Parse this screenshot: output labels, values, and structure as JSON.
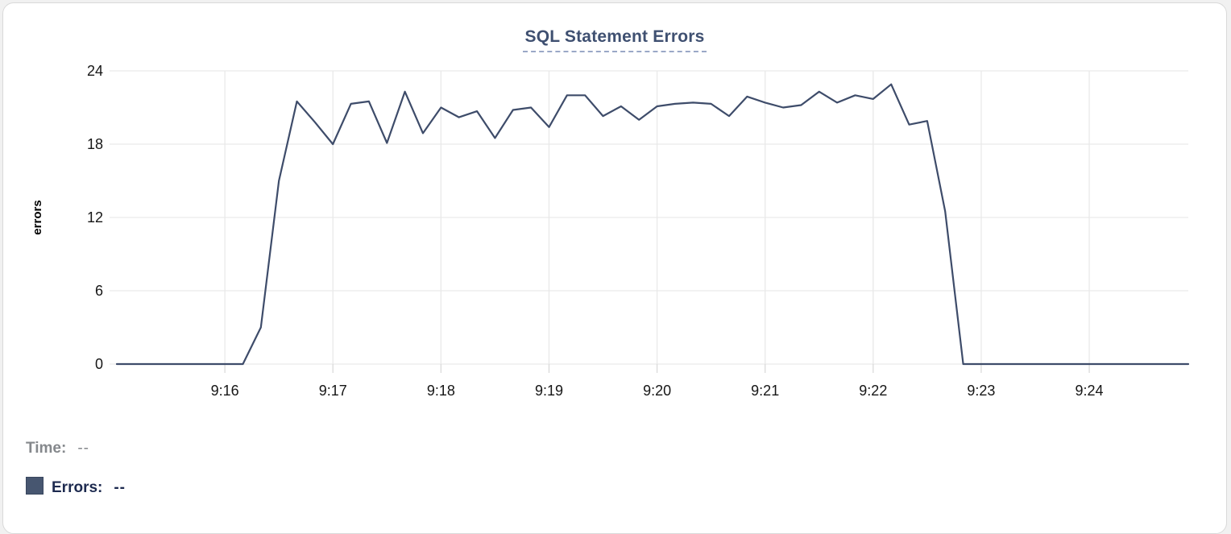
{
  "title": {
    "text": "SQL Statement Errors"
  },
  "legend": {
    "time_label": "Time:",
    "time_value": "--",
    "errors_label": "Errors:",
    "errors_value": "--"
  },
  "colors": {
    "line": "#3e4c6a",
    "title": "#3f5071",
    "title_underline": "#9aa8c7",
    "grid": "#e9e9e9",
    "tick_stub": "#dadada",
    "tick_text": "#161616",
    "axis_title_text": "#000000",
    "legend_swatch": "#475670",
    "legend_errors_text": "#1d2a4f",
    "legend_time_text": "#85888c",
    "card_border": "#d9d9d9"
  },
  "chart_data": {
    "type": "line",
    "title": "SQL Statement Errors",
    "xlabel": "",
    "ylabel": "errors",
    "ylim": [
      0,
      24
    ],
    "yticks": [
      0,
      6,
      12,
      18,
      24
    ],
    "xticks": [
      "9:16",
      "9:17",
      "9:18",
      "9:19",
      "9:20",
      "9:21",
      "9:22",
      "9:23",
      "9:24"
    ],
    "x_domain": [
      "9:15:00",
      "9:24:55"
    ],
    "grid": true,
    "legend_position": "bottom-left",
    "series": [
      {
        "name": "Errors",
        "color": "#3e4c6a",
        "x": [
          "9:15:00",
          "9:15:10",
          "9:15:20",
          "9:15:30",
          "9:15:40",
          "9:15:50",
          "9:16:00",
          "9:16:10",
          "9:16:20",
          "9:16:30",
          "9:16:40",
          "9:16:50",
          "9:17:00",
          "9:17:10",
          "9:17:20",
          "9:17:30",
          "9:17:40",
          "9:17:50",
          "9:18:00",
          "9:18:10",
          "9:18:20",
          "9:18:30",
          "9:18:40",
          "9:18:50",
          "9:19:00",
          "9:19:10",
          "9:19:20",
          "9:19:30",
          "9:19:40",
          "9:19:50",
          "9:20:00",
          "9:20:10",
          "9:20:20",
          "9:20:30",
          "9:20:40",
          "9:20:50",
          "9:21:00",
          "9:21:10",
          "9:21:20",
          "9:21:30",
          "9:21:40",
          "9:21:50",
          "9:22:00",
          "9:22:10",
          "9:22:20",
          "9:22:30",
          "9:22:40",
          "9:22:50",
          "9:23:00",
          "9:23:10",
          "9:23:20",
          "9:23:30",
          "9:23:40",
          "9:23:50",
          "9:24:00",
          "9:24:10",
          "9:24:20",
          "9:24:30",
          "9:24:40",
          "9:24:50",
          "9:24:55"
        ],
        "values": [
          0,
          0,
          0,
          0,
          0,
          0,
          0,
          0,
          3,
          15,
          21.5,
          19.8,
          18,
          21.3,
          21.5,
          18.1,
          22.3,
          18.9,
          21,
          20.2,
          20.7,
          18.5,
          20.8,
          21,
          19.4,
          22,
          22,
          20.3,
          21.1,
          20,
          21.1,
          21.3,
          21.4,
          21.3,
          20.3,
          21.9,
          21.4,
          21,
          21.2,
          22.3,
          21.4,
          22,
          21.7,
          22.9,
          19.6,
          19.9,
          12.5,
          0,
          0,
          0,
          0,
          0,
          0,
          0,
          0,
          0,
          0,
          0,
          0,
          0,
          0
        ]
      }
    ]
  }
}
